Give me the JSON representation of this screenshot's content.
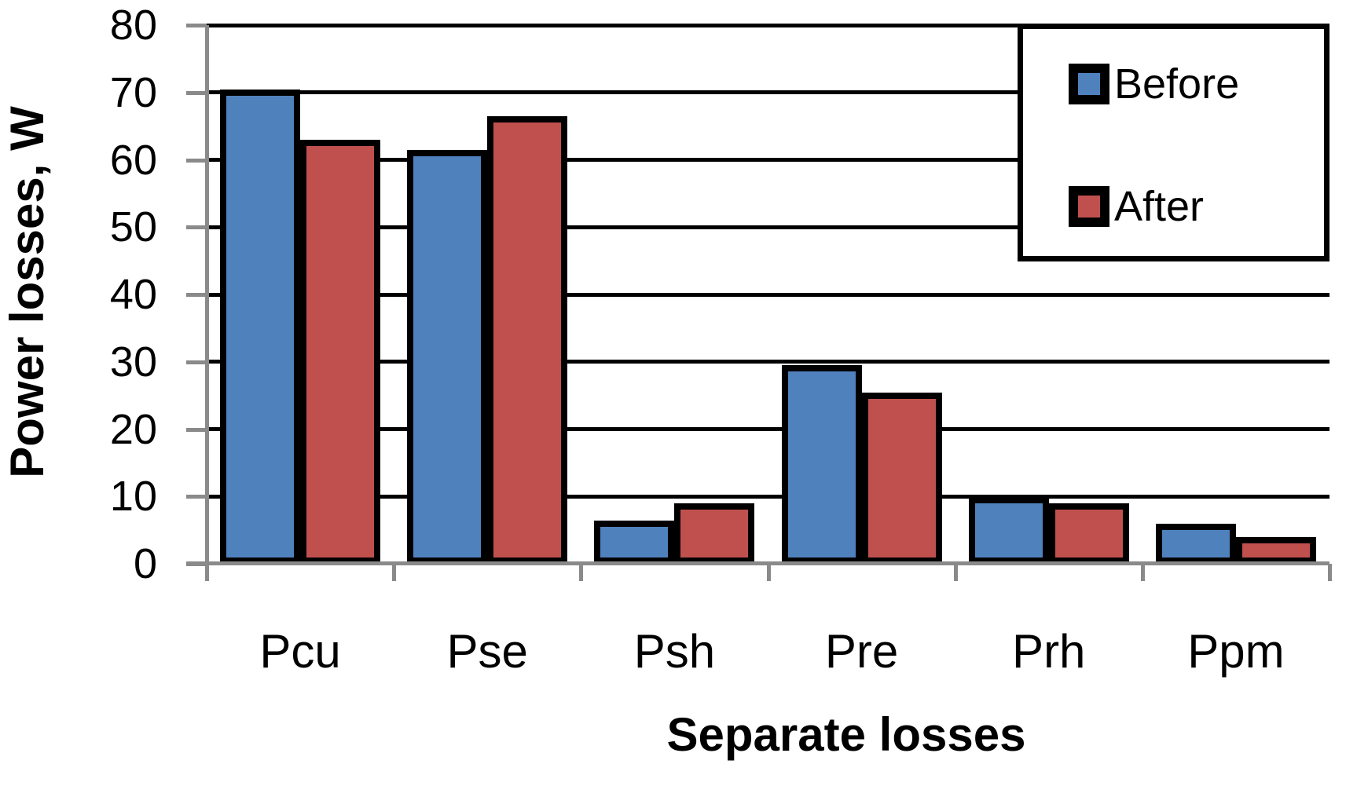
{
  "chart_data": {
    "type": "bar",
    "title": "",
    "categories": [
      "Pcu",
      "Pse",
      "Psh",
      "Pre",
      "Prh",
      "Ppm"
    ],
    "series": [
      {
        "name": "Before",
        "color": "#4F81BD",
        "values": [
          70,
          61,
          6,
          29,
          9.5,
          5.5
        ]
      },
      {
        "name": "After",
        "color": "#C0504D",
        "values": [
          62.5,
          66,
          8.5,
          25,
          8.5,
          3.5
        ]
      }
    ],
    "xlabel": "Separate losses",
    "ylabel": "Power losses, W",
    "ylim": [
      0,
      80
    ],
    "yticks": [
      0,
      10,
      20,
      30,
      40,
      50,
      60,
      70,
      80
    ],
    "grid": "horizontal",
    "gridline_color": "#000000",
    "axis_color": "#8a8a8a",
    "bar_outline_color": "#000000",
    "legend": {
      "position": "top-right",
      "items": [
        "Before",
        "After"
      ]
    }
  }
}
